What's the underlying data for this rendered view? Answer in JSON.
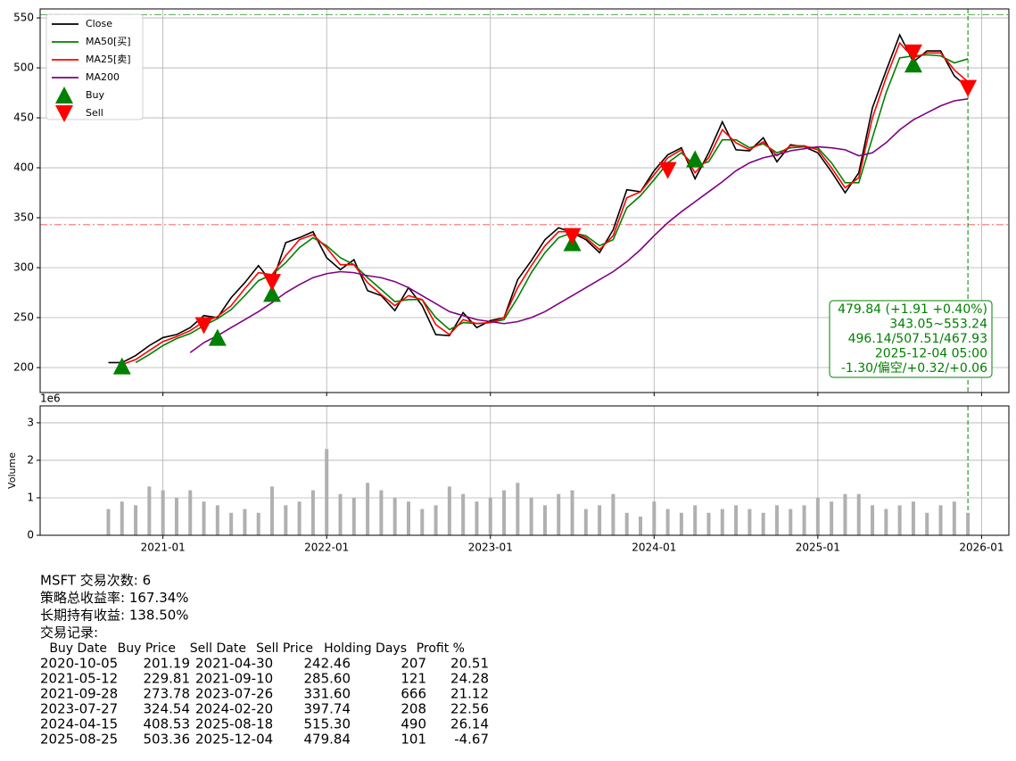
{
  "chart_data": {
    "type": "line",
    "x": [
      "2020-09",
      "2020-10",
      "2020-11",
      "2020-12",
      "2021-01",
      "2021-02",
      "2021-03",
      "2021-04",
      "2021-05",
      "2021-06",
      "2021-07",
      "2021-08",
      "2021-09",
      "2021-10",
      "2021-11",
      "2021-12",
      "2022-01",
      "2022-02",
      "2022-03",
      "2022-04",
      "2022-05",
      "2022-06",
      "2022-07",
      "2022-08",
      "2022-09",
      "2022-10",
      "2022-11",
      "2022-12",
      "2023-01",
      "2023-02",
      "2023-03",
      "2023-04",
      "2023-05",
      "2023-06",
      "2023-07",
      "2023-08",
      "2023-09",
      "2023-10",
      "2023-11",
      "2023-12",
      "2024-01",
      "2024-02",
      "2024-03",
      "2024-04",
      "2024-05",
      "2024-06",
      "2024-07",
      "2024-08",
      "2024-09",
      "2024-10",
      "2024-11",
      "2024-12",
      "2025-01",
      "2025-02",
      "2025-03",
      "2025-04",
      "2025-05",
      "2025-06",
      "2025-07",
      "2025-08",
      "2025-09",
      "2025-10",
      "2025-11",
      "2025-12"
    ],
    "series": [
      {
        "name": "Close",
        "color": "#000000",
        "values": [
          205,
          205,
          212,
          222,
          230,
          233,
          240,
          252,
          250,
          270,
          285,
          302,
          285,
          325,
          330,
          336,
          310,
          298,
          308,
          277,
          272,
          257,
          280,
          262,
          233,
          232,
          255,
          240,
          247,
          250,
          288,
          307,
          328,
          340,
          335,
          328,
          315,
          338,
          378,
          376,
          397,
          413,
          420,
          389,
          415,
          446,
          418,
          417,
          430,
          406,
          423,
          421,
          415,
          396,
          375,
          395,
          460,
          497,
          533,
          506,
          517,
          517,
          492,
          480
        ]
      },
      {
        "name": "MA50[买]",
        "color": "#008000",
        "values": [
          null,
          null,
          205,
          213,
          222,
          229,
          234,
          242,
          249,
          258,
          272,
          287,
          293,
          305,
          320,
          330,
          322,
          310,
          303,
          290,
          278,
          266,
          268,
          268,
          250,
          238,
          245,
          244,
          245,
          248,
          270,
          295,
          315,
          330,
          335,
          332,
          322,
          328,
          360,
          372,
          388,
          405,
          415,
          402,
          406,
          428,
          428,
          420,
          424,
          415,
          420,
          421,
          420,
          405,
          385,
          385,
          430,
          475,
          510,
          512,
          513,
          512,
          505,
          509
        ]
      },
      {
        "name": "MA25[卖]",
        "color": "#ff0000",
        "values": [
          null,
          203,
          208,
          217,
          226,
          231,
          237,
          246,
          251,
          262,
          279,
          295,
          293,
          312,
          328,
          333,
          320,
          303,
          303,
          285,
          273,
          262,
          272,
          268,
          243,
          233,
          248,
          244,
          245,
          250,
          280,
          302,
          322,
          336,
          336,
          330,
          318,
          332,
          370,
          376,
          393,
          410,
          418,
          395,
          410,
          438,
          425,
          418,
          426,
          412,
          422,
          422,
          418,
          400,
          380,
          390,
          450,
          490,
          525,
          510,
          515,
          515,
          498,
          486
        ]
      },
      {
        "name": "MA200",
        "color": "#800080",
        "values": [
          null,
          null,
          null,
          null,
          null,
          null,
          215,
          225,
          232,
          240,
          248,
          256,
          265,
          275,
          283,
          290,
          294,
          296,
          295,
          292,
          290,
          286,
          280,
          272,
          264,
          256,
          252,
          248,
          246,
          244,
          246,
          250,
          256,
          264,
          272,
          280,
          288,
          296,
          306,
          318,
          332,
          345,
          356,
          366,
          376,
          386,
          397,
          405,
          410,
          413,
          417,
          419,
          421,
          420,
          418,
          412,
          415,
          425,
          438,
          448,
          455,
          462,
          467,
          469
        ]
      }
    ],
    "markers": [
      {
        "name": "Buy",
        "color": "#008000",
        "shape": "up",
        "x": [
          "2020-10",
          "2021-05",
          "2021-09",
          "2023-07",
          "2024-04",
          "2025-08"
        ],
        "values": [
          201.19,
          229.81,
          273.78,
          324.54,
          408.53,
          503.36
        ]
      },
      {
        "name": "Sell",
        "color": "#ff0000",
        "shape": "down",
        "x": [
          "2021-04",
          "2021-09",
          "2023-07",
          "2024-02",
          "2025-08",
          "2025-12"
        ],
        "values": [
          242.46,
          285.6,
          331.6,
          397.74,
          515.3,
          479.84
        ]
      }
    ],
    "hlines": [
      {
        "value": 343.05,
        "color": "#ff0000"
      },
      {
        "value": 553.24,
        "color": "#008000"
      }
    ],
    "vline": "2025-12",
    "annotation": [
      "479.84 (+1.91 +0.40%)",
      "343.05~553.24",
      "496.14/507.51/467.93",
      "2025-12-04 05:00",
      "-1.30/偏空/+0.32/+0.06"
    ],
    "xlim": [
      "2020-04",
      "2026-03"
    ],
    "xticks": [
      "2021-01",
      "2022-01",
      "2023-01",
      "2024-01",
      "2025-01",
      "2026-01"
    ],
    "ylim": [
      175,
      559
    ],
    "yticks": [
      200,
      250,
      300,
      350,
      400,
      450,
      500,
      550
    ],
    "grid": true,
    "legend": "upper left",
    "volume": {
      "ylabel": "Volume",
      "offset_label": "1e6",
      "color": "#b0b0b0",
      "values": [
        0.7,
        0.9,
        0.8,
        1.3,
        1.2,
        1.0,
        1.2,
        0.9,
        0.8,
        0.6,
        0.7,
        0.6,
        1.3,
        0.8,
        0.9,
        1.2,
        2.3,
        1.1,
        1.0,
        1.4,
        1.2,
        1.0,
        0.9,
        0.7,
        0.8,
        1.3,
        1.1,
        0.9,
        1.0,
        1.2,
        1.4,
        1.0,
        0.8,
        1.1,
        1.2,
        0.7,
        0.8,
        1.1,
        0.6,
        0.5,
        0.9,
        0.7,
        0.6,
        0.8,
        0.6,
        0.7,
        0.8,
        0.7,
        0.6,
        0.8,
        0.7,
        0.8,
        1.0,
        0.9,
        1.1,
        1.1,
        0.8,
        0.7,
        0.8,
        0.9,
        0.6,
        0.8,
        0.9,
        0.6
      ],
      "ylim": [
        0,
        3.45
      ],
      "yticks": [
        0,
        1,
        2,
        3
      ]
    }
  },
  "report": {
    "lines": [
      "MSFT 交易次数: 6",
      "策略总收益率: 167.34%",
      "长期持有收益: 138.50%",
      "交易记录:"
    ],
    "table": {
      "header": [
        "Buy Date",
        "Buy Price",
        "Sell Date",
        "Sell Price",
        "Holding Days",
        "Profit %"
      ],
      "rows": [
        [
          "2020-10-05",
          "201.19",
          "2021-04-30",
          "242.46",
          "207",
          "20.51"
        ],
        [
          "2021-05-12",
          "229.81",
          "2021-09-10",
          "285.60",
          "121",
          "24.28"
        ],
        [
          "2021-09-28",
          "273.78",
          "2023-07-26",
          "331.60",
          "666",
          "21.12"
        ],
        [
          "2023-07-27",
          "324.54",
          "2024-02-20",
          "397.74",
          "208",
          "22.56"
        ],
        [
          "2024-04-15",
          "408.53",
          "2025-08-18",
          "515.30",
          "490",
          "26.14"
        ],
        [
          "2025-08-25",
          "503.36",
          "2025-12-04",
          "479.84",
          "101",
          "-4.67"
        ]
      ]
    }
  }
}
